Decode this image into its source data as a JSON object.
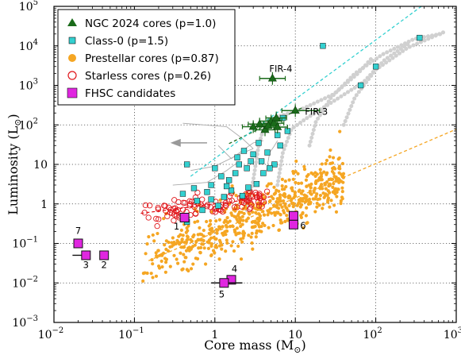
{
  "chart_data": {
    "type": "scatter",
    "xlabel": "Core mass (M",
    "xlabel_sub": "⊙",
    "xlabel_end": ")",
    "ylabel": "Luminosity (L",
    "ylabel_sub": "⊙",
    "ylabel_end": ")",
    "xscale": "log",
    "yscale": "log",
    "xlim": [
      0.01,
      1000
    ],
    "ylim": [
      0.001,
      100000
    ],
    "grid": true,
    "legend_position": "top-left",
    "x_ticks": [
      {
        "v": 0.01,
        "m": "10",
        "e": "−2"
      },
      {
        "v": 0.1,
        "m": "10",
        "e": "−1"
      },
      {
        "v": 1,
        "m": "1",
        "e": ""
      },
      {
        "v": 10,
        "m": "10",
        "e": ""
      },
      {
        "v": 100,
        "m": "10",
        "e": "2"
      },
      {
        "v": 1000,
        "m": "10",
        "e": "3"
      }
    ],
    "y_ticks": [
      {
        "v": 0.001,
        "m": "10",
        "e": "−3"
      },
      {
        "v": 0.01,
        "m": "10",
        "e": "−2"
      },
      {
        "v": 0.1,
        "m": "10",
        "e": "−1"
      },
      {
        "v": 1,
        "m": "1",
        "e": ""
      },
      {
        "v": 10,
        "m": "10",
        "e": ""
      },
      {
        "v": 100,
        "m": "10",
        "e": "2"
      },
      {
        "v": 1000,
        "m": "10",
        "e": "3"
      },
      {
        "v": 10000,
        "m": "10",
        "e": "4"
      },
      {
        "v": 100000,
        "m": "10",
        "e": "5"
      }
    ],
    "series": [
      {
        "name": "NGC 2024 cores (p=1.0)",
        "marker": "triangle",
        "color": "#1a6b1a",
        "points": [
          {
            "x": 3.0,
            "y": 90,
            "xerr": [
              2.2,
              4.2
            ]
          },
          {
            "x": 3.6,
            "y": 105,
            "xerr": [
              2.6,
              5.0
            ]
          },
          {
            "x": 4.2,
            "y": 75,
            "xerr": [
              3.2,
              5.6
            ]
          },
          {
            "x": 5.0,
            "y": 125,
            "xerr": [
              3.6,
              6.8
            ]
          },
          {
            "x": 5.4,
            "y": 110,
            "xerr": [
              4.0,
              7.2
            ]
          },
          {
            "x": 5.8,
            "y": 150,
            "xerr": [
              4.3,
              7.8
            ]
          },
          {
            "x": 4.6,
            "y": 95,
            "xerr": [
              3.4,
              6.2
            ]
          },
          {
            "x": 6.0,
            "y": 88,
            "xerr": [
              4.5,
              8.0
            ]
          },
          {
            "x": 5.2,
            "y": 1500,
            "xerr": [
              3.6,
              7.5
            ]
          },
          {
            "x": 10.0,
            "y": 230,
            "xerr": [
              6.8,
              20.0
            ]
          }
        ]
      },
      {
        "name": "Class-0 (p=1.5)",
        "marker": "square",
        "color": "#33d0d0",
        "points": [
          {
            "x": 22,
            "y": 10000
          },
          {
            "x": 350,
            "y": 16000
          },
          {
            "x": 65,
            "y": 1000
          },
          {
            "x": 100,
            "y": 3000
          },
          {
            "x": 7,
            "y": 150
          },
          {
            "x": 6,
            "y": 55
          },
          {
            "x": 4.5,
            "y": 20
          },
          {
            "x": 3.5,
            "y": 35
          },
          {
            "x": 3,
            "y": 18
          },
          {
            "x": 2.5,
            "y": 8
          },
          {
            "x": 2.8,
            "y": 12
          },
          {
            "x": 2.0,
            "y": 10
          },
          {
            "x": 1.8,
            "y": 6
          },
          {
            "x": 1.5,
            "y": 4
          },
          {
            "x": 1.2,
            "y": 5
          },
          {
            "x": 1.0,
            "y": 8
          },
          {
            "x": 0.9,
            "y": 3
          },
          {
            "x": 0.8,
            "y": 2
          },
          {
            "x": 0.55,
            "y": 2.5
          },
          {
            "x": 0.45,
            "y": 10
          },
          {
            "x": 0.6,
            "y": 1.2
          },
          {
            "x": 0.7,
            "y": 0.7
          },
          {
            "x": 0.45,
            "y": 0.35
          },
          {
            "x": 0.4,
            "y": 1.8
          },
          {
            "x": 1.3,
            "y": 1.5
          },
          {
            "x": 1.6,
            "y": 2.2
          },
          {
            "x": 2.2,
            "y": 1.6
          },
          {
            "x": 2.6,
            "y": 2.6
          },
          {
            "x": 3.3,
            "y": 3.2
          },
          {
            "x": 4.0,
            "y": 6
          },
          {
            "x": 5.5,
            "y": 10
          },
          {
            "x": 3.8,
            "y": 12
          },
          {
            "x": 2.3,
            "y": 22
          },
          {
            "x": 1.9,
            "y": 15
          },
          {
            "x": 4.8,
            "y": 8
          },
          {
            "x": 6.5,
            "y": 30
          },
          {
            "x": 8,
            "y": 70
          },
          {
            "x": 1.1,
            "y": 0.9
          },
          {
            "x": 0.9,
            "y": 1.3
          },
          {
            "x": 1.4,
            "y": 2.8
          }
        ]
      },
      {
        "name": "Prestellar cores (p=0.87)",
        "marker": "circle",
        "color": "#f5a623",
        "cloud": {
          "count": 600,
          "x_log_range": [
            -0.9,
            1.6
          ],
          "slope": 0.87,
          "intercept": -0.72,
          "scatter": 0.32,
          "seed": 7
        }
      },
      {
        "name": "Starless cores (p=0.26)",
        "marker": "open-circle",
        "color": "#e0161b",
        "cloud": {
          "count": 110,
          "x_log_range": [
            -0.9,
            0.65
          ],
          "slope": 0.26,
          "intercept": 0.0,
          "scatter": 0.16,
          "seed": 3
        }
      },
      {
        "name": "FHSC candidates",
        "marker": "square",
        "color": "#e026e0",
        "points": [
          {
            "x": 0.42,
            "y": 0.45,
            "label": "1"
          },
          {
            "x": 0.042,
            "y": 0.05,
            "label": "2"
          },
          {
            "x": 0.025,
            "y": 0.05,
            "label": "3",
            "xerr": [
              0.017,
              0.025
            ]
          },
          {
            "x": 1.6,
            "y": 0.012,
            "label": "4"
          },
          {
            "x": 1.3,
            "y": 0.01,
            "label": "5",
            "xerr": [
              0.9,
              2.2
            ]
          },
          {
            "x": 9.5,
            "y": 0.3,
            "label": "6"
          },
          {
            "x": 9.5,
            "y": 0.5,
            "label": ""
          },
          {
            "x": 0.02,
            "y": 0.1,
            "label": "7"
          }
        ]
      }
    ],
    "fits": [
      {
        "color": "#1a6b1a",
        "x_range": [
          1.5,
          12
        ],
        "slope": 1.0,
        "intercept": 1.35
      },
      {
        "color": "#33d0d0",
        "x_range": [
          0.5,
          400
        ],
        "slope": 1.5,
        "intercept": 1.15
      },
      {
        "color": "#f5a623",
        "x_range": [
          0.15,
          1000
        ],
        "slope": 0.87,
        "intercept": -0.72
      },
      {
        "color": "#e0161b",
        "x_range": [
          0.12,
          5
        ],
        "slope": 0.26,
        "intercept": 0.0
      }
    ],
    "annotations": [
      {
        "text": "FIR-4",
        "x": 5.2,
        "y": 1500
      },
      {
        "text": "FIR-3",
        "x": 10.0,
        "y": 230
      }
    ],
    "tracks": [
      {
        "points": [
          [
            2.5,
            0.7
          ],
          [
            3.0,
            4
          ],
          [
            3.5,
            30
          ],
          [
            4.2,
            110
          ],
          [
            6,
            160
          ],
          [
            12,
            250
          ],
          [
            30,
            600
          ],
          [
            60,
            2000
          ],
          [
            90,
            5000
          ]
        ]
      },
      {
        "points": [
          [
            6,
            3
          ],
          [
            7,
            20
          ],
          [
            9,
            80
          ],
          [
            14,
            150
          ],
          [
            30,
            400
          ],
          [
            70,
            1200
          ],
          [
            130,
            4500
          ],
          [
            250,
            11000
          ]
        ]
      },
      {
        "points": [
          [
            15,
            30
          ],
          [
            18,
            120
          ],
          [
            28,
            500
          ],
          [
            55,
            2000
          ],
          [
            120,
            6000
          ],
          [
            300,
            15000
          ],
          [
            480,
            18000
          ],
          [
            650,
            20000
          ]
        ]
      },
      {
        "points": [
          [
            40,
            100
          ],
          [
            55,
            500
          ],
          [
            100,
            2500
          ],
          [
            250,
            9000
          ],
          [
            550,
            18000
          ],
          [
            690,
            22000
          ]
        ]
      }
    ],
    "evolution_lines": [
      {
        "points": [
          [
            2.0,
            12
          ],
          [
            1.4,
            7
          ],
          [
            0.8,
            3.5
          ],
          [
            0.3,
            3
          ]
        ]
      },
      {
        "points": [
          [
            3.0,
            25
          ],
          [
            2.0,
            18
          ],
          [
            1.0,
            9
          ],
          [
            0.5,
            7
          ]
        ]
      },
      {
        "points": [
          [
            4.0,
            40
          ],
          [
            3.0,
            35
          ],
          [
            1.6,
            14
          ],
          [
            1.1,
            30
          ]
        ]
      },
      {
        "points": [
          [
            3.0,
            25
          ],
          [
            2.2,
            45
          ],
          [
            1.4,
            90
          ],
          [
            0.4,
            110
          ]
        ]
      },
      {
        "points": [
          [
            6,
            40
          ],
          [
            5.4,
            28
          ],
          [
            4.8,
            20
          ],
          [
            4.4,
            7
          ]
        ]
      }
    ],
    "arrow": {
      "x_from": 0.8,
      "x_to": 0.28,
      "y": 35,
      "color": "#999999"
    }
  }
}
